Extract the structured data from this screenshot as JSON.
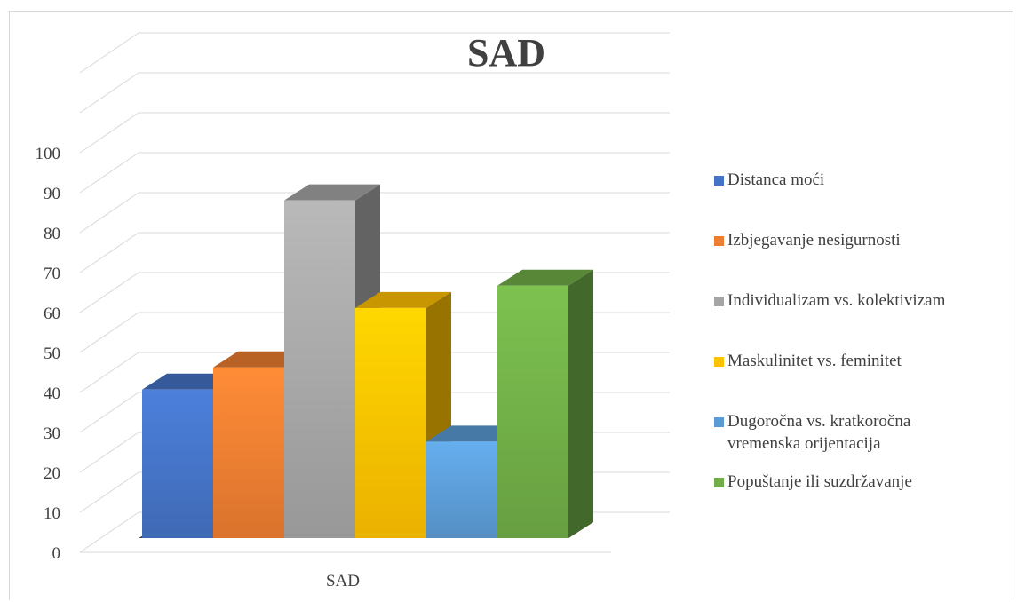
{
  "chart_data": {
    "type": "bar",
    "title": "SAD",
    "categories": [
      "SAD"
    ],
    "series": [
      {
        "name": "Distanca moći",
        "values": [
          40
        ],
        "color": "#4472C4"
      },
      {
        "name": "Izbjegavanje nesigurnosti",
        "values": [
          46
        ],
        "color": "#ED7D31"
      },
      {
        "name": "Individualizam vs. kolektivizam",
        "values": [
          91
        ],
        "color": "#A5A5A5"
      },
      {
        "name": "Maskulinitet vs. feminitet",
        "values": [
          62
        ],
        "color": "#FFC000"
      },
      {
        "name": "Dugoročna vs. kratkoročna\nvremenska orijentacija",
        "values": [
          26
        ],
        "color": "#5B9BD5"
      },
      {
        "name": "Popuštanje ili suzdržavanje",
        "values": [
          68
        ],
        "color": "#70AD47"
      }
    ],
    "yticks": [
      "0",
      "10",
      "20",
      "30",
      "40",
      "50",
      "60",
      "70",
      "80",
      "90",
      "100"
    ],
    "ylim": [
      0,
      100
    ],
    "grid": true,
    "legend_position": "right",
    "view": "3d-column"
  }
}
